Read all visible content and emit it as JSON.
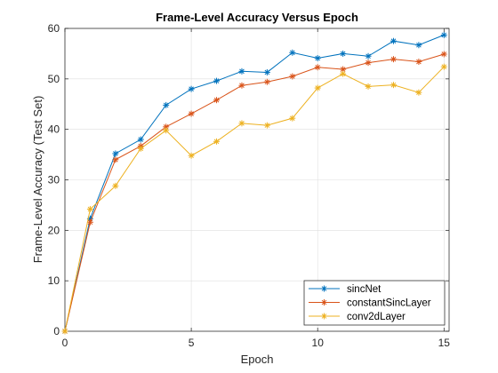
{
  "chart_data": {
    "type": "line",
    "title": "Frame-Level Accuracy Versus Epoch",
    "xlabel": "Epoch",
    "ylabel": "Frame-Level Accuracy (Test Set)",
    "xlim": [
      0,
      15.2
    ],
    "ylim": [
      0,
      60
    ],
    "xticks": [
      0,
      5,
      10,
      15
    ],
    "yticks": [
      0,
      10,
      20,
      30,
      40,
      50,
      60
    ],
    "grid": true,
    "legend_position": "bottom-right",
    "x": [
      0,
      1,
      2,
      3,
      4,
      5,
      6,
      7,
      8,
      9,
      10,
      11,
      12,
      13,
      14,
      15
    ],
    "series": [
      {
        "name": "sincNet",
        "color": "#0072BD",
        "values": [
          0,
          22.3,
          35.2,
          38.0,
          44.8,
          48.0,
          49.6,
          51.5,
          51.3,
          55.2,
          54.1,
          55.0,
          54.5,
          57.5,
          56.7,
          58.7
        ]
      },
      {
        "name": "constantSincLayer",
        "color": "#D95319",
        "values": [
          0,
          21.6,
          34.0,
          36.7,
          40.5,
          43.1,
          45.8,
          48.7,
          49.4,
          50.5,
          52.3,
          51.9,
          53.2,
          53.9,
          53.4,
          54.9
        ]
      },
      {
        "name": "conv2dLayer",
        "color": "#EDB120",
        "values": [
          0,
          24.2,
          28.8,
          36.2,
          39.8,
          34.8,
          37.6,
          41.2,
          40.8,
          42.2,
          48.2,
          51.0,
          48.5,
          48.8,
          47.3,
          52.4
        ]
      }
    ]
  }
}
